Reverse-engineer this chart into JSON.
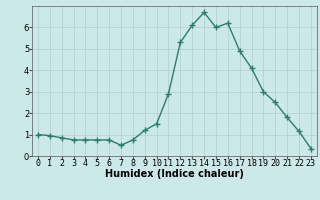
{
  "x": [
    0,
    1,
    2,
    3,
    4,
    5,
    6,
    7,
    8,
    9,
    10,
    11,
    12,
    13,
    14,
    15,
    16,
    17,
    18,
    19,
    20,
    21,
    22,
    23
  ],
  "y": [
    1.0,
    0.95,
    0.85,
    0.75,
    0.75,
    0.75,
    0.75,
    0.5,
    0.75,
    1.2,
    1.5,
    2.9,
    5.3,
    6.1,
    6.7,
    6.0,
    6.2,
    4.9,
    4.1,
    3.0,
    2.5,
    1.8,
    1.15,
    0.35
  ],
  "line_color": "#2d7d6e",
  "marker": "+",
  "marker_size": 4,
  "bg_color": "#cce8e8",
  "grid_color": "#b0cece",
  "xlabel": "Humidex (Indice chaleur)",
  "xlim": [
    -0.5,
    23.5
  ],
  "ylim": [
    0,
    7
  ],
  "yticks": [
    0,
    1,
    2,
    3,
    4,
    5,
    6
  ],
  "xticks": [
    0,
    1,
    2,
    3,
    4,
    5,
    6,
    7,
    8,
    9,
    10,
    11,
    12,
    13,
    14,
    15,
    16,
    17,
    18,
    19,
    20,
    21,
    22,
    23
  ],
  "xlabel_fontsize": 7,
  "tick_fontsize": 6,
  "line_width": 1.0,
  "marker_linewidth": 1.0
}
